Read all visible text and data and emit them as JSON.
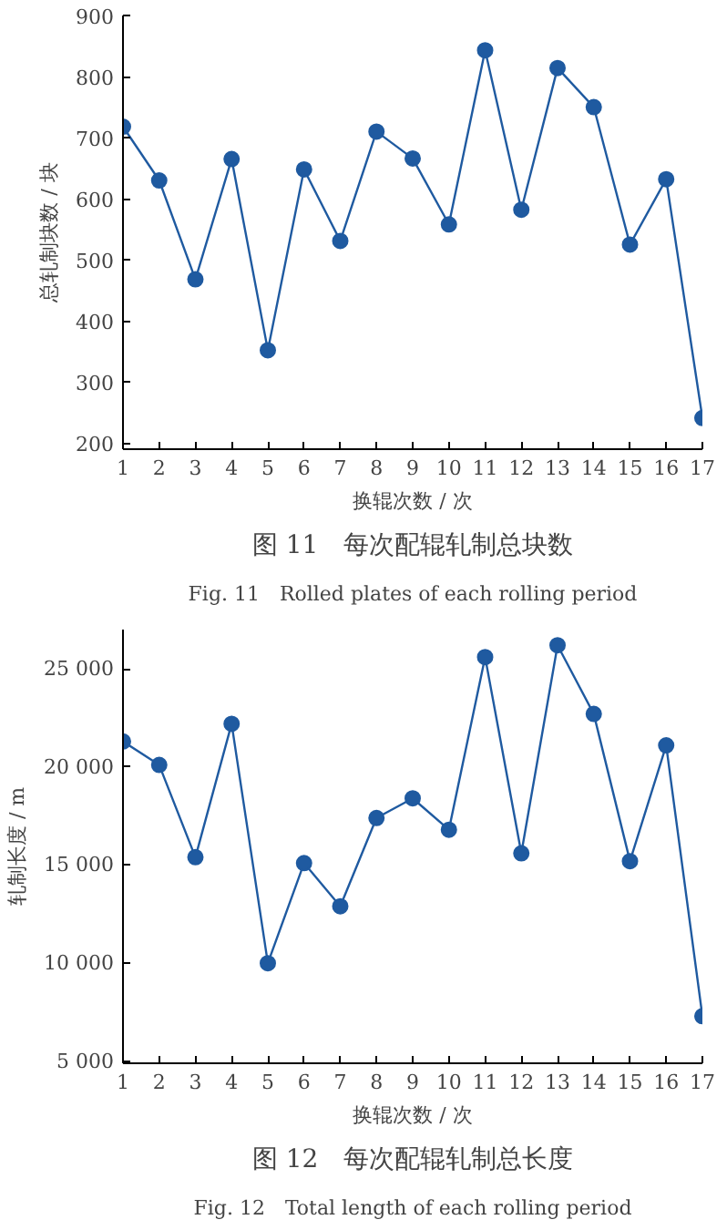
{
  "chart_data": [
    {
      "type": "line",
      "title": "图 11　每次配辊轧制总块数",
      "subtitle": "Fig. 11　Rolled plates of each rolling period",
      "xlabel": "换辊次数 / 次",
      "ylabel": "总轧制块数 / 块",
      "x": [
        1,
        2,
        3,
        4,
        5,
        6,
        7,
        8,
        9,
        10,
        11,
        12,
        13,
        14,
        15,
        16,
        17
      ],
      "series": [
        {
          "color": "#1f5aa0",
          "values": [
            718,
            630,
            468,
            665,
            352,
            648,
            531,
            710,
            666,
            558,
            843,
            582,
            814,
            750,
            525,
            632,
            241
          ]
        }
      ],
      "xlim": [
        1,
        17
      ],
      "xticks": [
        1,
        2,
        3,
        4,
        5,
        6,
        7,
        8,
        9,
        10,
        11,
        12,
        13,
        14,
        15,
        16,
        17
      ],
      "ylim": [
        190,
        900
      ],
      "yticks": [
        200,
        300,
        400,
        500,
        600,
        700,
        800,
        900
      ],
      "grid": false,
      "marker": "circle",
      "line_style": "solid"
    },
    {
      "type": "line",
      "title": "图 12　每次配辊轧制总长度",
      "subtitle": "Fig. 12　Total length of each rolling period",
      "xlabel": "换辊次数 / 次",
      "ylabel": "轧制长度 / m",
      "x": [
        1,
        2,
        3,
        4,
        5,
        6,
        7,
        8,
        9,
        10,
        11,
        12,
        13,
        14,
        15,
        16,
        17
      ],
      "series": [
        {
          "color": "#1f5aa0",
          "values": [
            21300,
            20100,
            15400,
            22200,
            10000,
            15100,
            12900,
            17400,
            18400,
            16800,
            25600,
            15600,
            26200,
            22700,
            15200,
            21100,
            7300
          ]
        }
      ],
      "xlim": [
        1,
        17
      ],
      "xticks": [
        1,
        2,
        3,
        4,
        5,
        6,
        7,
        8,
        9,
        10,
        11,
        12,
        13,
        14,
        15,
        16,
        17
      ],
      "ylim": [
        4900,
        27000
      ],
      "yticks": [
        {
          "value": 5000,
          "label": "5 000"
        },
        {
          "value": 10000,
          "label": "10 000"
        },
        {
          "value": 15000,
          "label": "15 000"
        },
        {
          "value": 20000,
          "label": "20 000"
        },
        {
          "value": 25000,
          "label": "25 000"
        }
      ],
      "grid": false,
      "marker": "circle",
      "line_style": "solid"
    }
  ]
}
